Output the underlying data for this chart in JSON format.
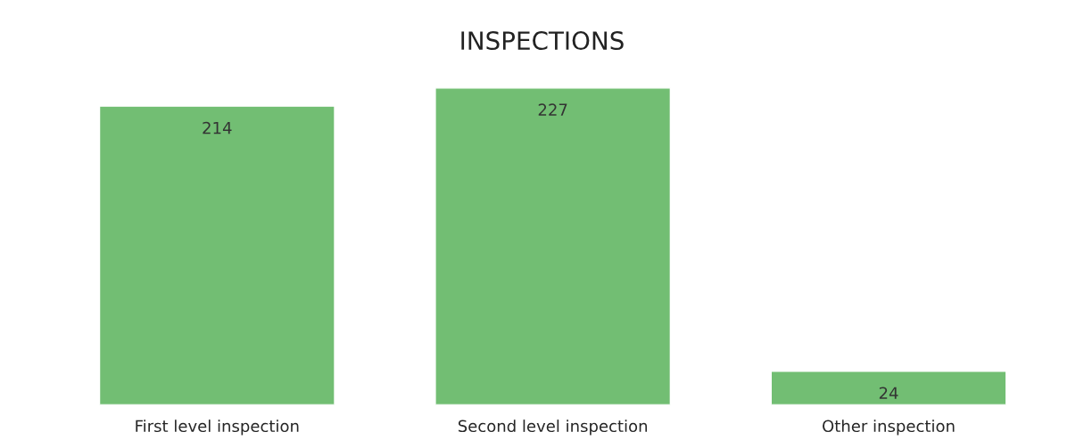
{
  "chart_data": {
    "type": "bar",
    "title": "INSPECTIONS",
    "categories": [
      "First level inspection",
      "Second level inspection",
      "Other inspection"
    ],
    "values": [
      214,
      227,
      24
    ],
    "color": "#72be73",
    "data_labels": true,
    "grid": false,
    "legend": false
  }
}
